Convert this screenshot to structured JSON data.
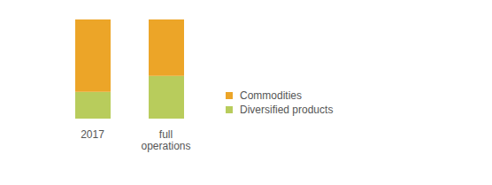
{
  "chart_data": {
    "type": "bar",
    "stacked": true,
    "categories": [
      "2017",
      "full operations"
    ],
    "series": [
      {
        "name": "Commodities",
        "color": "#eca528",
        "values": [
          73,
          57
        ]
      },
      {
        "name": "Diversified products",
        "color": "#b8cc5c",
        "values": [
          27,
          43
        ]
      }
    ],
    "ylim": [
      0,
      100
    ],
    "legend": "right",
    "tick_labels": "x"
  }
}
